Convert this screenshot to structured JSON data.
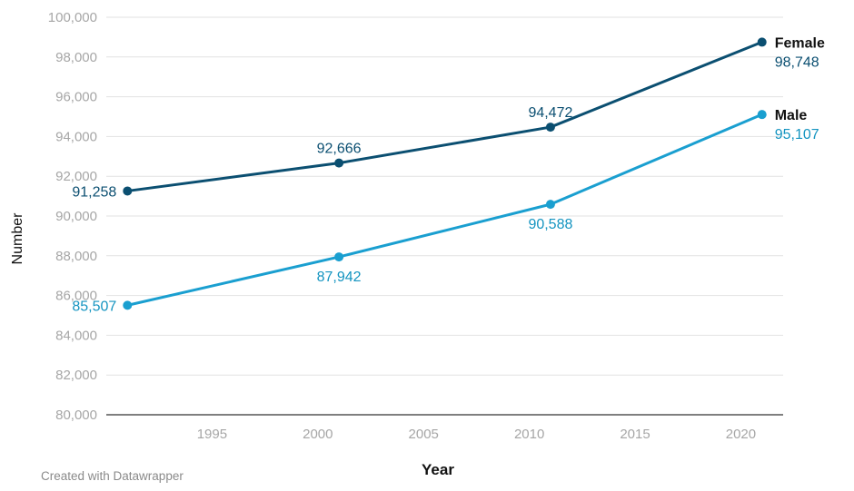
{
  "chart_data": {
    "type": "line",
    "xlabel": "Year",
    "ylabel": "Number",
    "ylim": [
      80000,
      100000
    ],
    "yticks": [
      80000,
      82000,
      84000,
      86000,
      88000,
      90000,
      92000,
      94000,
      96000,
      98000,
      100000
    ],
    "ytick_labels": [
      "80,000",
      "82,000",
      "84,000",
      "86,000",
      "88,000",
      "90,000",
      "92,000",
      "94,000",
      "96,000",
      "98,000",
      "100,000"
    ],
    "xlim": [
      1990,
      2022
    ],
    "xticks": [
      1995,
      2000,
      2005,
      2010,
      2015,
      2020
    ],
    "xtick_labels": [
      "1995",
      "2000",
      "2005",
      "2010",
      "2015",
      "2020"
    ],
    "grid": true,
    "legend": "direct labels at line ends",
    "series": [
      {
        "name": "Female",
        "color": "#0b4f71",
        "x": [
          1991,
          2001,
          2011,
          2021
        ],
        "values": [
          91258,
          92666,
          94472,
          98748
        ],
        "labels": [
          "91,258",
          "92,666",
          "94,472",
          "98,748"
        ]
      },
      {
        "name": "Male",
        "color": "#1a9fd0",
        "label_color": "#1494c0",
        "x": [
          1991,
          2001,
          2011,
          2021
        ],
        "values": [
          85507,
          87942,
          90588,
          95107
        ],
        "labels": [
          "85,507",
          "87,942",
          "90,588",
          "95,107"
        ]
      }
    ]
  },
  "footer": "Created with Datawrapper"
}
